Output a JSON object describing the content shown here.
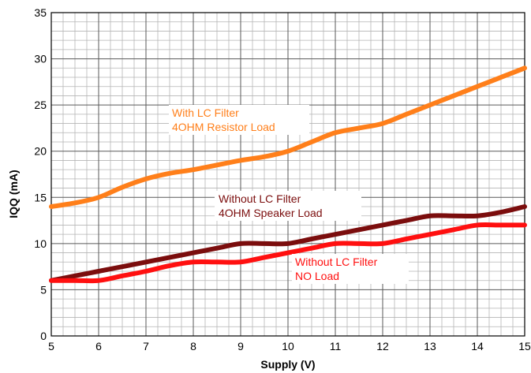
{
  "chart_data": {
    "type": "line",
    "xlabel": "Supply (V)",
    "ylabel": "IQQ (mA)",
    "xlim": [
      5,
      15
    ],
    "ylim": [
      0,
      35
    ],
    "x_ticks": [
      "5",
      "6",
      "7",
      "8",
      "9",
      "10",
      "11",
      "12",
      "13",
      "14",
      "15"
    ],
    "y_ticks": [
      "0",
      "5",
      "10",
      "15",
      "20",
      "25",
      "30",
      "35"
    ],
    "grid": true,
    "series": [
      {
        "label_lines": [
          "With LC Filter",
          "4OHM Resistor Load"
        ],
        "color": "#ff7f1a",
        "x": [
          5,
          5.5,
          6,
          6.5,
          7,
          7.5,
          8,
          8.5,
          9,
          9.5,
          10,
          10.5,
          11,
          11.5,
          12,
          12.5,
          13,
          13.5,
          14,
          14.5,
          15
        ],
        "y": [
          14,
          14.4,
          15,
          16.1,
          17,
          17.6,
          18,
          18.5,
          19,
          19.4,
          20,
          21,
          22,
          22.5,
          23,
          24,
          25,
          26,
          27,
          28,
          29
        ]
      },
      {
        "label_lines": [
          "Without LC Filter",
          "4OHM Speaker Load"
        ],
        "color": "#7b0d0d",
        "x": [
          5,
          5.5,
          6,
          6.5,
          7,
          7.5,
          8,
          8.5,
          9,
          9.5,
          10,
          10.5,
          11,
          11.5,
          12,
          12.5,
          13,
          13.5,
          14,
          14.5,
          15
        ],
        "y": [
          6,
          6.5,
          7,
          7.5,
          8,
          8.5,
          9,
          9.5,
          10,
          10,
          10,
          10.5,
          11,
          11.5,
          12,
          12.5,
          13,
          13,
          13,
          13.4,
          14
        ]
      },
      {
        "label_lines": [
          "Without LC Filter",
          "NO Load"
        ],
        "color": "#ff1010",
        "x": [
          5,
          5.5,
          6,
          6.5,
          7,
          7.5,
          8,
          8.5,
          9,
          9.5,
          10,
          10.5,
          11,
          11.5,
          12,
          12.5,
          13,
          13.5,
          14,
          14.5,
          15
        ],
        "y": [
          6,
          6,
          6,
          6.5,
          7,
          7.6,
          8,
          8,
          8,
          8.5,
          9,
          9.5,
          10,
          10,
          10,
          10.5,
          11,
          11.5,
          12,
          12,
          12
        ]
      }
    ]
  }
}
